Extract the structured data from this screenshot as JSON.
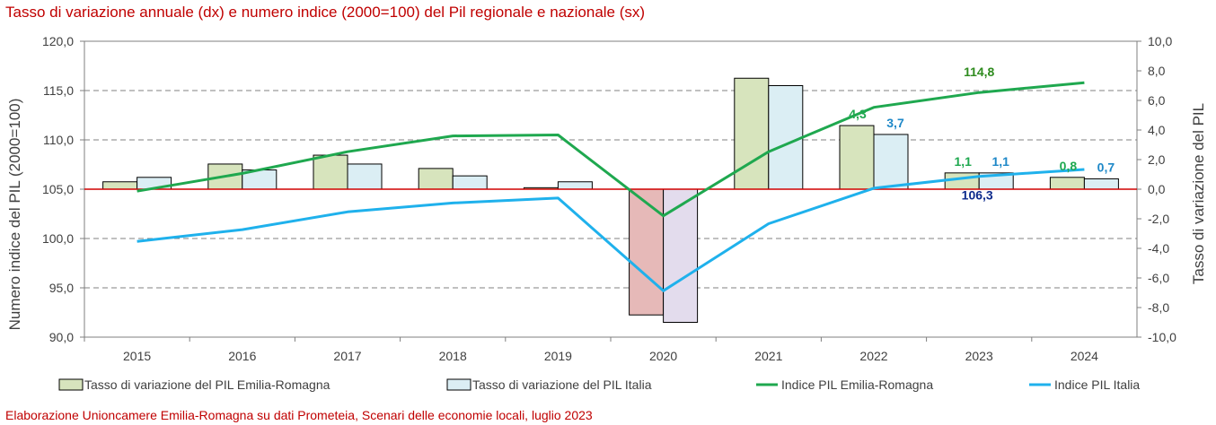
{
  "title": "Tasso di variazione annuale (dx) e numero indice (2000=100) del Pil regionale e nazionale (sx)",
  "source": "Elaborazione Unioncamere Emilia-Romagna su dati Prometeia, Scenari delle economie locali, luglio 2023",
  "colors": {
    "bar_er": "#d7e4bd",
    "bar_er_neg": "#e6b9b8",
    "bar_it": "#dbeef4",
    "bar_it_neg": "#e3dced",
    "line_er": "#1fa84f",
    "line_it": "#1fb1ec",
    "zero_line": "#d00000",
    "grid": "#808080",
    "label_dark_blue": "#0d2a8c"
  },
  "chart_data": {
    "type": "bar",
    "categories": [
      "2015",
      "2016",
      "2017",
      "2018",
      "2019",
      "2020",
      "2021",
      "2022",
      "2023",
      "2024"
    ],
    "series": [
      {
        "name": "Tasso di variazione del PIL Emilia-Romagna",
        "type": "bar",
        "axis": "right",
        "values": [
          0.5,
          1.7,
          2.3,
          1.4,
          0.1,
          -8.5,
          7.5,
          4.3,
          1.1,
          0.8
        ]
      },
      {
        "name": "Tasso di variazione del PIL Italia",
        "type": "bar",
        "axis": "right",
        "values": [
          0.8,
          1.3,
          1.7,
          0.9,
          0.5,
          -9.0,
          7.0,
          3.7,
          1.1,
          0.7
        ]
      },
      {
        "name": "Indice PIL Emilia-Romagna",
        "type": "line",
        "axis": "left",
        "values": [
          104.8,
          106.6,
          108.8,
          110.4,
          110.5,
          102.3,
          108.8,
          113.3,
          114.8,
          115.8
        ]
      },
      {
        "name": "Indice PIL Italia",
        "type": "line",
        "axis": "left",
        "values": [
          99.7,
          100.9,
          102.7,
          103.6,
          104.1,
          94.7,
          101.5,
          105.1,
          106.3,
          107.0
        ]
      }
    ],
    "data_labels": [
      {
        "text": "4,3",
        "series": 0,
        "index": 7
      },
      {
        "text": "3,7",
        "series": 1,
        "index": 7
      },
      {
        "text": "1,1",
        "series": 0,
        "index": 8
      },
      {
        "text": "1,1",
        "series": 1,
        "index": 8
      },
      {
        "text": "0,8",
        "series": 0,
        "index": 9
      },
      {
        "text": "0,7",
        "series": 1,
        "index": 9
      },
      {
        "text": "114,8",
        "series": 2,
        "index": 8
      },
      {
        "text": "106,3",
        "series": 3,
        "index": 8
      }
    ],
    "ylabel": "Numero indice del PIL (2000=100)",
    "y2label": "Tasso di variazione del PIL",
    "ylim": [
      90,
      120
    ],
    "y2lim": [
      -10,
      10
    ],
    "yticks": [
      "90,0",
      "95,0",
      "100,0",
      "105,0",
      "110,0",
      "115,0",
      "120,0"
    ],
    "y2ticks": [
      "-10,0",
      "-8,0",
      "-6,0",
      "-4,0",
      "-2,0",
      "0,0",
      "2,0",
      "4,0",
      "6,0",
      "8,0",
      "10,0"
    ],
    "grid": true,
    "legend_position": "bottom"
  }
}
